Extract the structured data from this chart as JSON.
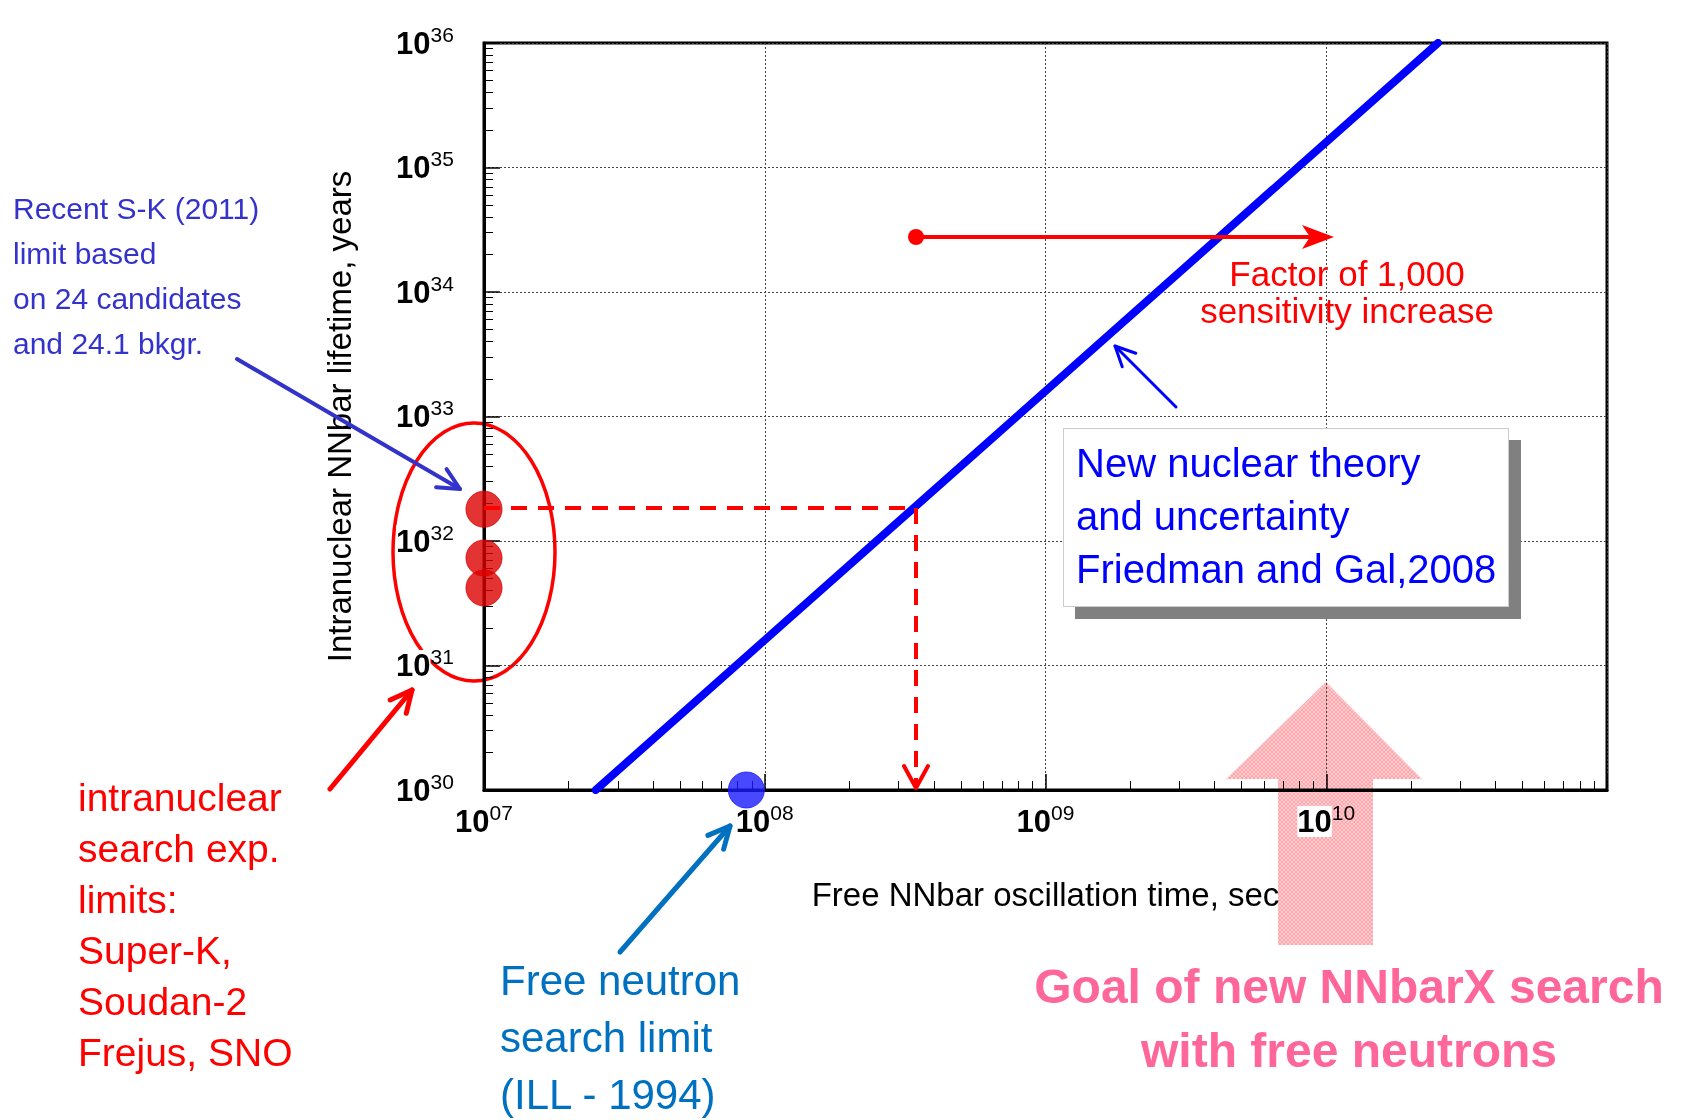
{
  "chart_data": {
    "type": "line",
    "xlabel": "Free NNbar oscillation time, sec",
    "ylabel": "Intranuclear NNbar lifetime, years",
    "xlim": [
      10000000.0,
      100000000000.0
    ],
    "ylim": [
      1e+30,
      1e+36
    ],
    "log": "xy",
    "grid": true,
    "xticks": [
      {
        "value": 10000000.0,
        "label": "10$^{07}$"
      },
      {
        "value": 100000000.0,
        "label": "10$^{08}$"
      },
      {
        "value": 1000000000.0,
        "label": "10$^{09}$"
      },
      {
        "value": 10000000000.0,
        "label": "10$^{10}$"
      }
    ],
    "yticks": [
      {
        "value": 1e+30,
        "label": "10$^{30}$"
      },
      {
        "value": 1e+31,
        "label": "10$^{31}$"
      },
      {
        "value": 1e+32,
        "label": "10$^{32}$"
      },
      {
        "value": 1e+33,
        "label": "10$^{33}$"
      },
      {
        "value": 1e+34,
        "label": "10$^{34}$"
      },
      {
        "value": 1e+35,
        "label": "10$^{35}$"
      },
      {
        "value": 1e+36,
        "label": "10$^{36}$"
      }
    ],
    "series": [
      {
        "type": "line",
        "color": "#0000ff",
        "x": [
          25000000.0,
          25000000000.0
        ],
        "values": [
          1e+30,
          1e+36
        ],
        "marker": "none",
        "line_style": "solid"
      },
      {
        "type": "scatter",
        "color": "#dd0000",
        "x": [
          10000000.0,
          10000000.0,
          10000000.0
        ],
        "values": [
          1.8e+32,
          7.3e+31,
          4.2e+31
        ],
        "marker": "circle"
      },
      {
        "type": "scatter",
        "color": "#1a1aff",
        "x": [
          86000000.0
        ],
        "values": [
          1e+30
        ],
        "marker": "circle"
      }
    ],
    "annotations": [
      "Recent S-K (2011)\nlimit based\non 24 candidates\nand 24.1 bkgr.",
      "intranuclear\nsearch exp.\nlimits:\nSuper-K,\nSoudan-2\nFrejus, SNO",
      "Free neutron\nsearch limit\n(ILL - 1994)",
      "New nuclear theory\nand uncertainty\nFriedman and Gal,2008",
      "Factor of 1,000\nsensitivity increase",
      "Goal of new NNbarX search\nwith free neutrons"
    ]
  }
}
